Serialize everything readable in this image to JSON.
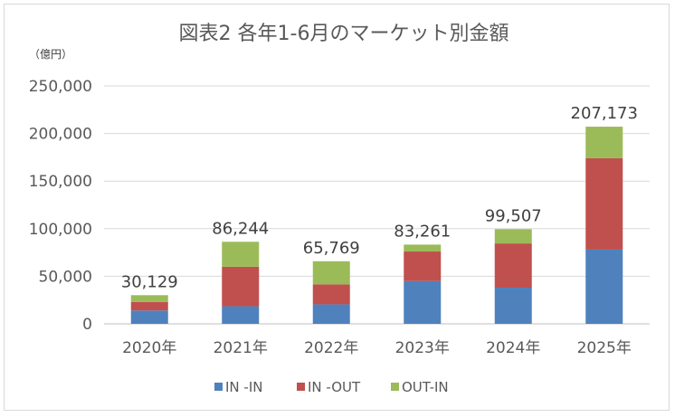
{
  "chart_data": {
    "type": "bar",
    "stacked": true,
    "title": "図表2 各年1-6月のマーケット別金額",
    "unit_label": "（億円）",
    "categories": [
      "2020年",
      "2021年",
      "2022年",
      "2023年",
      "2024年",
      "2025年"
    ],
    "series": [
      {
        "name": "IN -IN",
        "color": "#4f81bd",
        "values": [
          14000,
          18500,
          20500,
          45000,
          38000,
          78000
        ]
      },
      {
        "name": "IN -OUT",
        "color": "#c0504d",
        "values": [
          9000,
          41500,
          21000,
          31000,
          46500,
          96000
        ]
      },
      {
        "name": "OUT-IN",
        "color": "#9bbb59",
        "values": [
          7129,
          26244,
          24269,
          7261,
          15007,
          33173
        ]
      }
    ],
    "totals": [
      "30,129",
      "86,244",
      "65,769",
      "83,261",
      "99,507",
      "207,173"
    ],
    "y_ticks": [
      "0",
      "50,000",
      "100,000",
      "150,000",
      "200,000",
      "250,000"
    ],
    "ylim": [
      0,
      250000
    ],
    "grid": true,
    "legend_position": "bottom"
  }
}
